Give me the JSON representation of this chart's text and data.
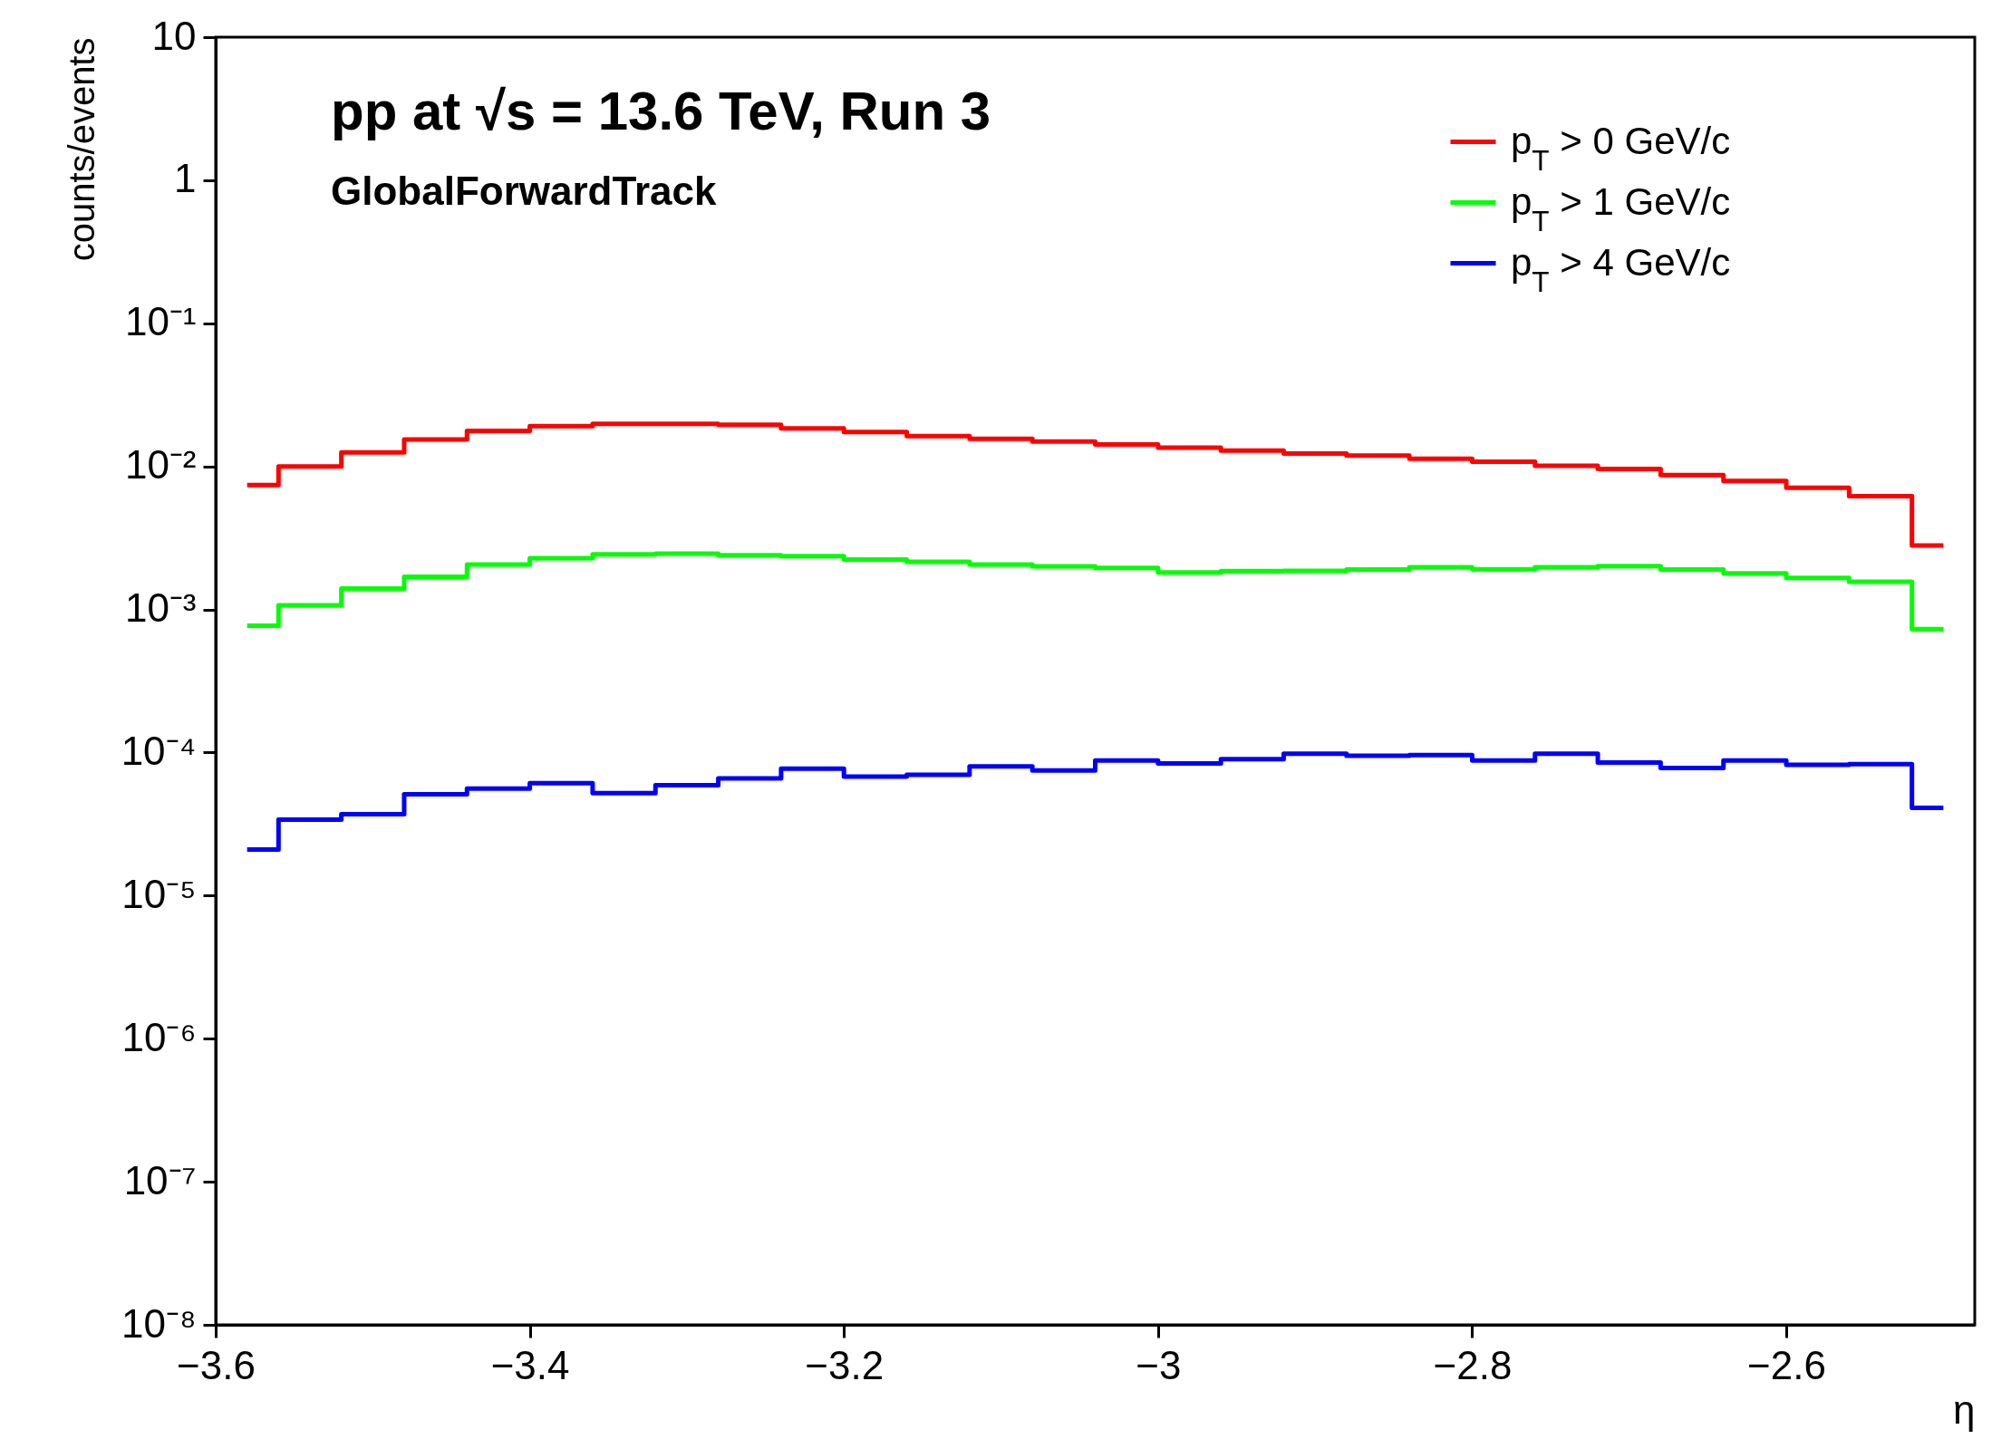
{
  "chart_data": {
    "type": "step",
    "title": "pp at √s = 13.6 TeV, Run 3",
    "subtitle": "GlobalForwardTrack",
    "xlabel": "η",
    "ylabel": "counts/events",
    "x": [
      -3.58,
      -3.54,
      -3.5,
      -3.46,
      -3.42,
      -3.38,
      -3.34,
      -3.3,
      -3.26,
      -3.22,
      -3.18,
      -3.14,
      -3.1,
      -3.06,
      -3.02,
      -2.98,
      -2.94,
      -2.9,
      -2.86,
      -2.82,
      -2.78,
      -2.74,
      -2.7,
      -2.66,
      -2.62,
      -2.58,
      -2.54,
      -2.5
    ],
    "series": [
      {
        "name": "p$_{T}$ > 0 GeV/c",
        "color": "#ff0000",
        "values": [
          0.0074,
          0.01,
          0.0125,
          0.0154,
          0.0177,
          0.0191,
          0.0198,
          0.0198,
          0.0195,
          0.0184,
          0.0174,
          0.0163,
          0.0156,
          0.0149,
          0.0142,
          0.0135,
          0.0129,
          0.0123,
          0.0119,
          0.0113,
          0.0108,
          0.0101,
          0.0096,
          0.0087,
          0.0079,
          0.0071,
          0.0062,
          0.0028
        ]
      },
      {
        "name": "p$_{T}$ > 1 GeV/c",
        "color": "#00ff00",
        "values": [
          0.00077,
          0.00107,
          0.0014,
          0.00169,
          0.00206,
          0.00228,
          0.00243,
          0.00245,
          0.00239,
          0.00236,
          0.00223,
          0.00215,
          0.00206,
          0.002,
          0.00195,
          0.00181,
          0.00185,
          0.00186,
          0.0019,
          0.00197,
          0.00191,
          0.00197,
          0.00201,
          0.0019,
          0.00179,
          0.00166,
          0.00156,
          0.00073
        ]
      },
      {
        "name": "p$_{T}$ > 4 GeV/c",
        "color": "#0000ff",
        "values": [
          2.1e-05,
          3.4e-05,
          3.7e-05,
          5.1e-05,
          5.6e-05,
          6.1e-05,
          5.2e-05,
          5.9e-05,
          6.6e-05,
          7.7e-05,
          6.8e-05,
          7e-05,
          8e-05,
          7.5e-05,
          8.8e-05,
          8.4e-05,
          9e-05,
          9.8e-05,
          9.5e-05,
          9.6e-05,
          8.8e-05,
          9.8e-05,
          8.5e-05,
          7.8e-05,
          8.8e-05,
          8.2e-05,
          8.3e-05,
          4.1e-05
        ]
      }
    ],
    "xlim": [
      -3.6,
      -2.48
    ],
    "xticks": [
      {
        "value": -3.6,
        "label": "−3.6"
      },
      {
        "value": -3.4,
        "label": "−3.4"
      },
      {
        "value": -3.2,
        "label": "−3.2"
      },
      {
        "value": -3.0,
        "label": "−3"
      },
      {
        "value": -2.8,
        "label": "−2.8"
      },
      {
        "value": -2.6,
        "label": "−2.6"
      }
    ],
    "ylim": [
      1e-08,
      10
    ],
    "yticks": [
      {
        "value": 1e-08,
        "label": "10⁻⁸"
      },
      {
        "value": 1e-07,
        "label": "10⁻⁷"
      },
      {
        "value": 1e-06,
        "label": "10⁻⁶"
      },
      {
        "value": 1e-05,
        "label": "10⁻⁵"
      },
      {
        "value": 0.0001,
        "label": "10⁻⁴"
      },
      {
        "value": 0.001,
        "label": "10⁻³"
      },
      {
        "value": 0.01,
        "label": "10⁻²"
      },
      {
        "value": 0.1,
        "label": "10⁻¹"
      },
      1,
      10
    ],
    "log": true,
    "grid": false,
    "legend": "top right"
  }
}
